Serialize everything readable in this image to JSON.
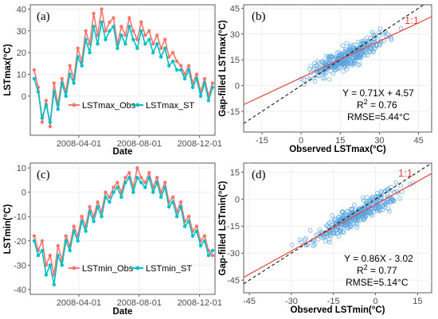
{
  "colors": {
    "obs": "#f8766d",
    "st": "#00bfc4",
    "scatter": "#5aa5e0",
    "fit": "#e8453c",
    "one_to_one": "#000000",
    "grid": "#ebebeb"
  },
  "chart_data": [
    {
      "type": "line",
      "panel_label": "(a)",
      "ylabel": "LSTmax(°C)",
      "xlabel": "Date",
      "ylim": [
        -18,
        42
      ],
      "yticks": [
        0,
        10,
        20,
        30,
        40
      ],
      "xlim": [
        "2007-12-25",
        "2009-01-01"
      ],
      "xticks": [
        "2008-04-01",
        "2008-08-01",
        "2008-12-01"
      ],
      "legend_position": "bottom-left",
      "series": [
        {
          "name": "LSTmax_Obs",
          "x": [
            "2008-01-02",
            "2008-01-10",
            "2008-01-18",
            "2008-01-26",
            "2008-02-03",
            "2008-02-11",
            "2008-02-19",
            "2008-02-27",
            "2008-03-06",
            "2008-03-14",
            "2008-03-22",
            "2008-03-30",
            "2008-04-07",
            "2008-04-15",
            "2008-04-23",
            "2008-05-01",
            "2008-05-09",
            "2008-05-17",
            "2008-05-25",
            "2008-06-02",
            "2008-06-10",
            "2008-06-18",
            "2008-06-26",
            "2008-07-04",
            "2008-07-12",
            "2008-07-20",
            "2008-07-28",
            "2008-08-05",
            "2008-08-13",
            "2008-08-21",
            "2008-08-29",
            "2008-09-06",
            "2008-09-14",
            "2008-09-22",
            "2008-09-30",
            "2008-10-08",
            "2008-10-16",
            "2008-10-24",
            "2008-11-01",
            "2008-11-09",
            "2008-11-17",
            "2008-11-25",
            "2008-12-03",
            "2008-12-11",
            "2008-12-19",
            "2008-12-27"
          ],
          "y": [
            12,
            4,
            -12,
            -2,
            -14,
            6,
            -4,
            8,
            2,
            14,
            8,
            22,
            16,
            30,
            24,
            38,
            28,
            40,
            30,
            34,
            36,
            24,
            32,
            28,
            36,
            30,
            26,
            34,
            28,
            30,
            24,
            28,
            22,
            26,
            18,
            20,
            16,
            14,
            10,
            14,
            6,
            10,
            2,
            8,
            0,
            6
          ]
        },
        {
          "name": "LSTmax_ST",
          "x": [
            "2008-01-02",
            "2008-01-10",
            "2008-01-18",
            "2008-01-26",
            "2008-02-03",
            "2008-02-11",
            "2008-02-19",
            "2008-02-27",
            "2008-03-06",
            "2008-03-14",
            "2008-03-22",
            "2008-03-30",
            "2008-04-07",
            "2008-04-15",
            "2008-04-23",
            "2008-05-01",
            "2008-05-09",
            "2008-05-17",
            "2008-05-25",
            "2008-06-02",
            "2008-06-10",
            "2008-06-18",
            "2008-06-26",
            "2008-07-04",
            "2008-07-12",
            "2008-07-20",
            "2008-07-28",
            "2008-08-05",
            "2008-08-13",
            "2008-08-21",
            "2008-08-29",
            "2008-09-06",
            "2008-09-14",
            "2008-09-22",
            "2008-09-30",
            "2008-10-08",
            "2008-10-16",
            "2008-10-24",
            "2008-11-01",
            "2008-11-09",
            "2008-11-17",
            "2008-11-25",
            "2008-12-03",
            "2008-12-11",
            "2008-12-19",
            "2008-12-27"
          ],
          "y": [
            8,
            2,
            -10,
            -4,
            -12,
            2,
            -6,
            6,
            0,
            10,
            6,
            18,
            14,
            26,
            20,
            32,
            24,
            34,
            26,
            30,
            32,
            22,
            28,
            24,
            32,
            26,
            22,
            30,
            24,
            26,
            20,
            24,
            18,
            22,
            14,
            16,
            12,
            12,
            8,
            12,
            4,
            8,
            0,
            6,
            -2,
            4
          ]
        }
      ]
    },
    {
      "type": "scatter",
      "panel_label": "(b)",
      "xlabel": "Observed LSTmax(°C)",
      "ylabel": "Gap-filled LSTmax(°C)",
      "xlim": [
        -22,
        50
      ],
      "ylim": [
        -27,
        47
      ],
      "xticks": [
        -15,
        0,
        15,
        30,
        45
      ],
      "yticks": [
        -15,
        0,
        15,
        30,
        45
      ],
      "fit": {
        "slope": 0.71,
        "intercept": 4.57
      },
      "one_to_one_label": "1:1",
      "equation": "Y = 0.71X + 4.57",
      "r2_label": "R",
      "r2_value": " = 0.76",
      "rmse_text": "RMSE=5.44°C"
    },
    {
      "type": "line",
      "panel_label": "(c)",
      "ylabel": "LSTmin(°C)",
      "xlabel": "Date",
      "ylim": [
        -42,
        12
      ],
      "yticks": [
        -40,
        -30,
        -20,
        -10,
        0,
        10
      ],
      "xlim": [
        "2007-12-25",
        "2009-01-01"
      ],
      "xticks": [
        "2008-04-01",
        "2008-08-01",
        "2008-12-01"
      ],
      "legend_position": "bottom-left",
      "series": [
        {
          "name": "LSTmin_Obs",
          "x": [
            "2008-01-02",
            "2008-01-10",
            "2008-01-18",
            "2008-01-26",
            "2008-02-03",
            "2008-02-11",
            "2008-02-19",
            "2008-02-27",
            "2008-03-06",
            "2008-03-14",
            "2008-03-22",
            "2008-03-30",
            "2008-04-07",
            "2008-04-15",
            "2008-04-23",
            "2008-05-01",
            "2008-05-09",
            "2008-05-17",
            "2008-05-25",
            "2008-06-02",
            "2008-06-10",
            "2008-06-18",
            "2008-06-26",
            "2008-07-04",
            "2008-07-12",
            "2008-07-20",
            "2008-07-28",
            "2008-08-05",
            "2008-08-13",
            "2008-08-21",
            "2008-08-29",
            "2008-09-06",
            "2008-09-14",
            "2008-09-22",
            "2008-09-30",
            "2008-10-08",
            "2008-10-16",
            "2008-10-24",
            "2008-11-01",
            "2008-11-09",
            "2008-11-17",
            "2008-11-25",
            "2008-12-03",
            "2008-12-11",
            "2008-12-19",
            "2008-12-27"
          ],
          "y": [
            -18,
            -24,
            -20,
            -30,
            -26,
            -34,
            -22,
            -28,
            -18,
            -22,
            -14,
            -18,
            -10,
            -14,
            -6,
            -10,
            -4,
            -8,
            0,
            -2,
            2,
            4,
            0,
            6,
            8,
            2,
            10,
            6,
            4,
            8,
            2,
            6,
            0,
            4,
            -4,
            -2,
            -8,
            -4,
            -12,
            -10,
            -16,
            -14,
            -20,
            -18,
            -24,
            -26
          ]
        },
        {
          "name": "LSTmin_ST",
          "x": [
            "2008-01-02",
            "2008-01-10",
            "2008-01-18",
            "2008-01-26",
            "2008-02-03",
            "2008-02-11",
            "2008-02-19",
            "2008-02-27",
            "2008-03-06",
            "2008-03-14",
            "2008-03-22",
            "2008-03-30",
            "2008-04-07",
            "2008-04-15",
            "2008-04-23",
            "2008-05-01",
            "2008-05-09",
            "2008-05-17",
            "2008-05-25",
            "2008-06-02",
            "2008-06-10",
            "2008-06-18",
            "2008-06-26",
            "2008-07-04",
            "2008-07-12",
            "2008-07-20",
            "2008-07-28",
            "2008-08-05",
            "2008-08-13",
            "2008-08-21",
            "2008-08-29",
            "2008-09-06",
            "2008-09-14",
            "2008-09-22",
            "2008-09-30",
            "2008-10-08",
            "2008-10-16",
            "2008-10-24",
            "2008-11-01",
            "2008-11-09",
            "2008-11-17",
            "2008-11-25",
            "2008-12-03",
            "2008-12-11",
            "2008-12-19",
            "2008-12-27"
          ],
          "y": [
            -20,
            -26,
            -24,
            -34,
            -30,
            -38,
            -26,
            -30,
            -20,
            -24,
            -16,
            -20,
            -12,
            -16,
            -8,
            -12,
            -6,
            -10,
            -2,
            -4,
            0,
            2,
            -2,
            4,
            6,
            0,
            6,
            4,
            2,
            6,
            0,
            4,
            -2,
            2,
            -6,
            -4,
            -10,
            -6,
            -14,
            -12,
            -18,
            -16,
            -22,
            -20,
            -26,
            -24
          ]
        }
      ]
    },
    {
      "type": "scatter",
      "panel_label": "(d)",
      "xlabel": "Observed LSTmin(°C)",
      "ylabel": "Gap-filled LSTmin(°C)",
      "xlim": [
        -47,
        20
      ],
      "ylim": [
        -52,
        20
      ],
      "xticks": [
        -45,
        -30,
        -15,
        0,
        15
      ],
      "yticks": [
        -45,
        -30,
        -15,
        0,
        15
      ],
      "fit": {
        "slope": 0.86,
        "intercept": -3.02
      },
      "one_to_one_label": "1:1",
      "equation": "Y = 0.86X - 3.02",
      "r2_label": "R",
      "r2_value": " = 0.77",
      "rmse_text": "RMSE=5.14°C"
    }
  ]
}
